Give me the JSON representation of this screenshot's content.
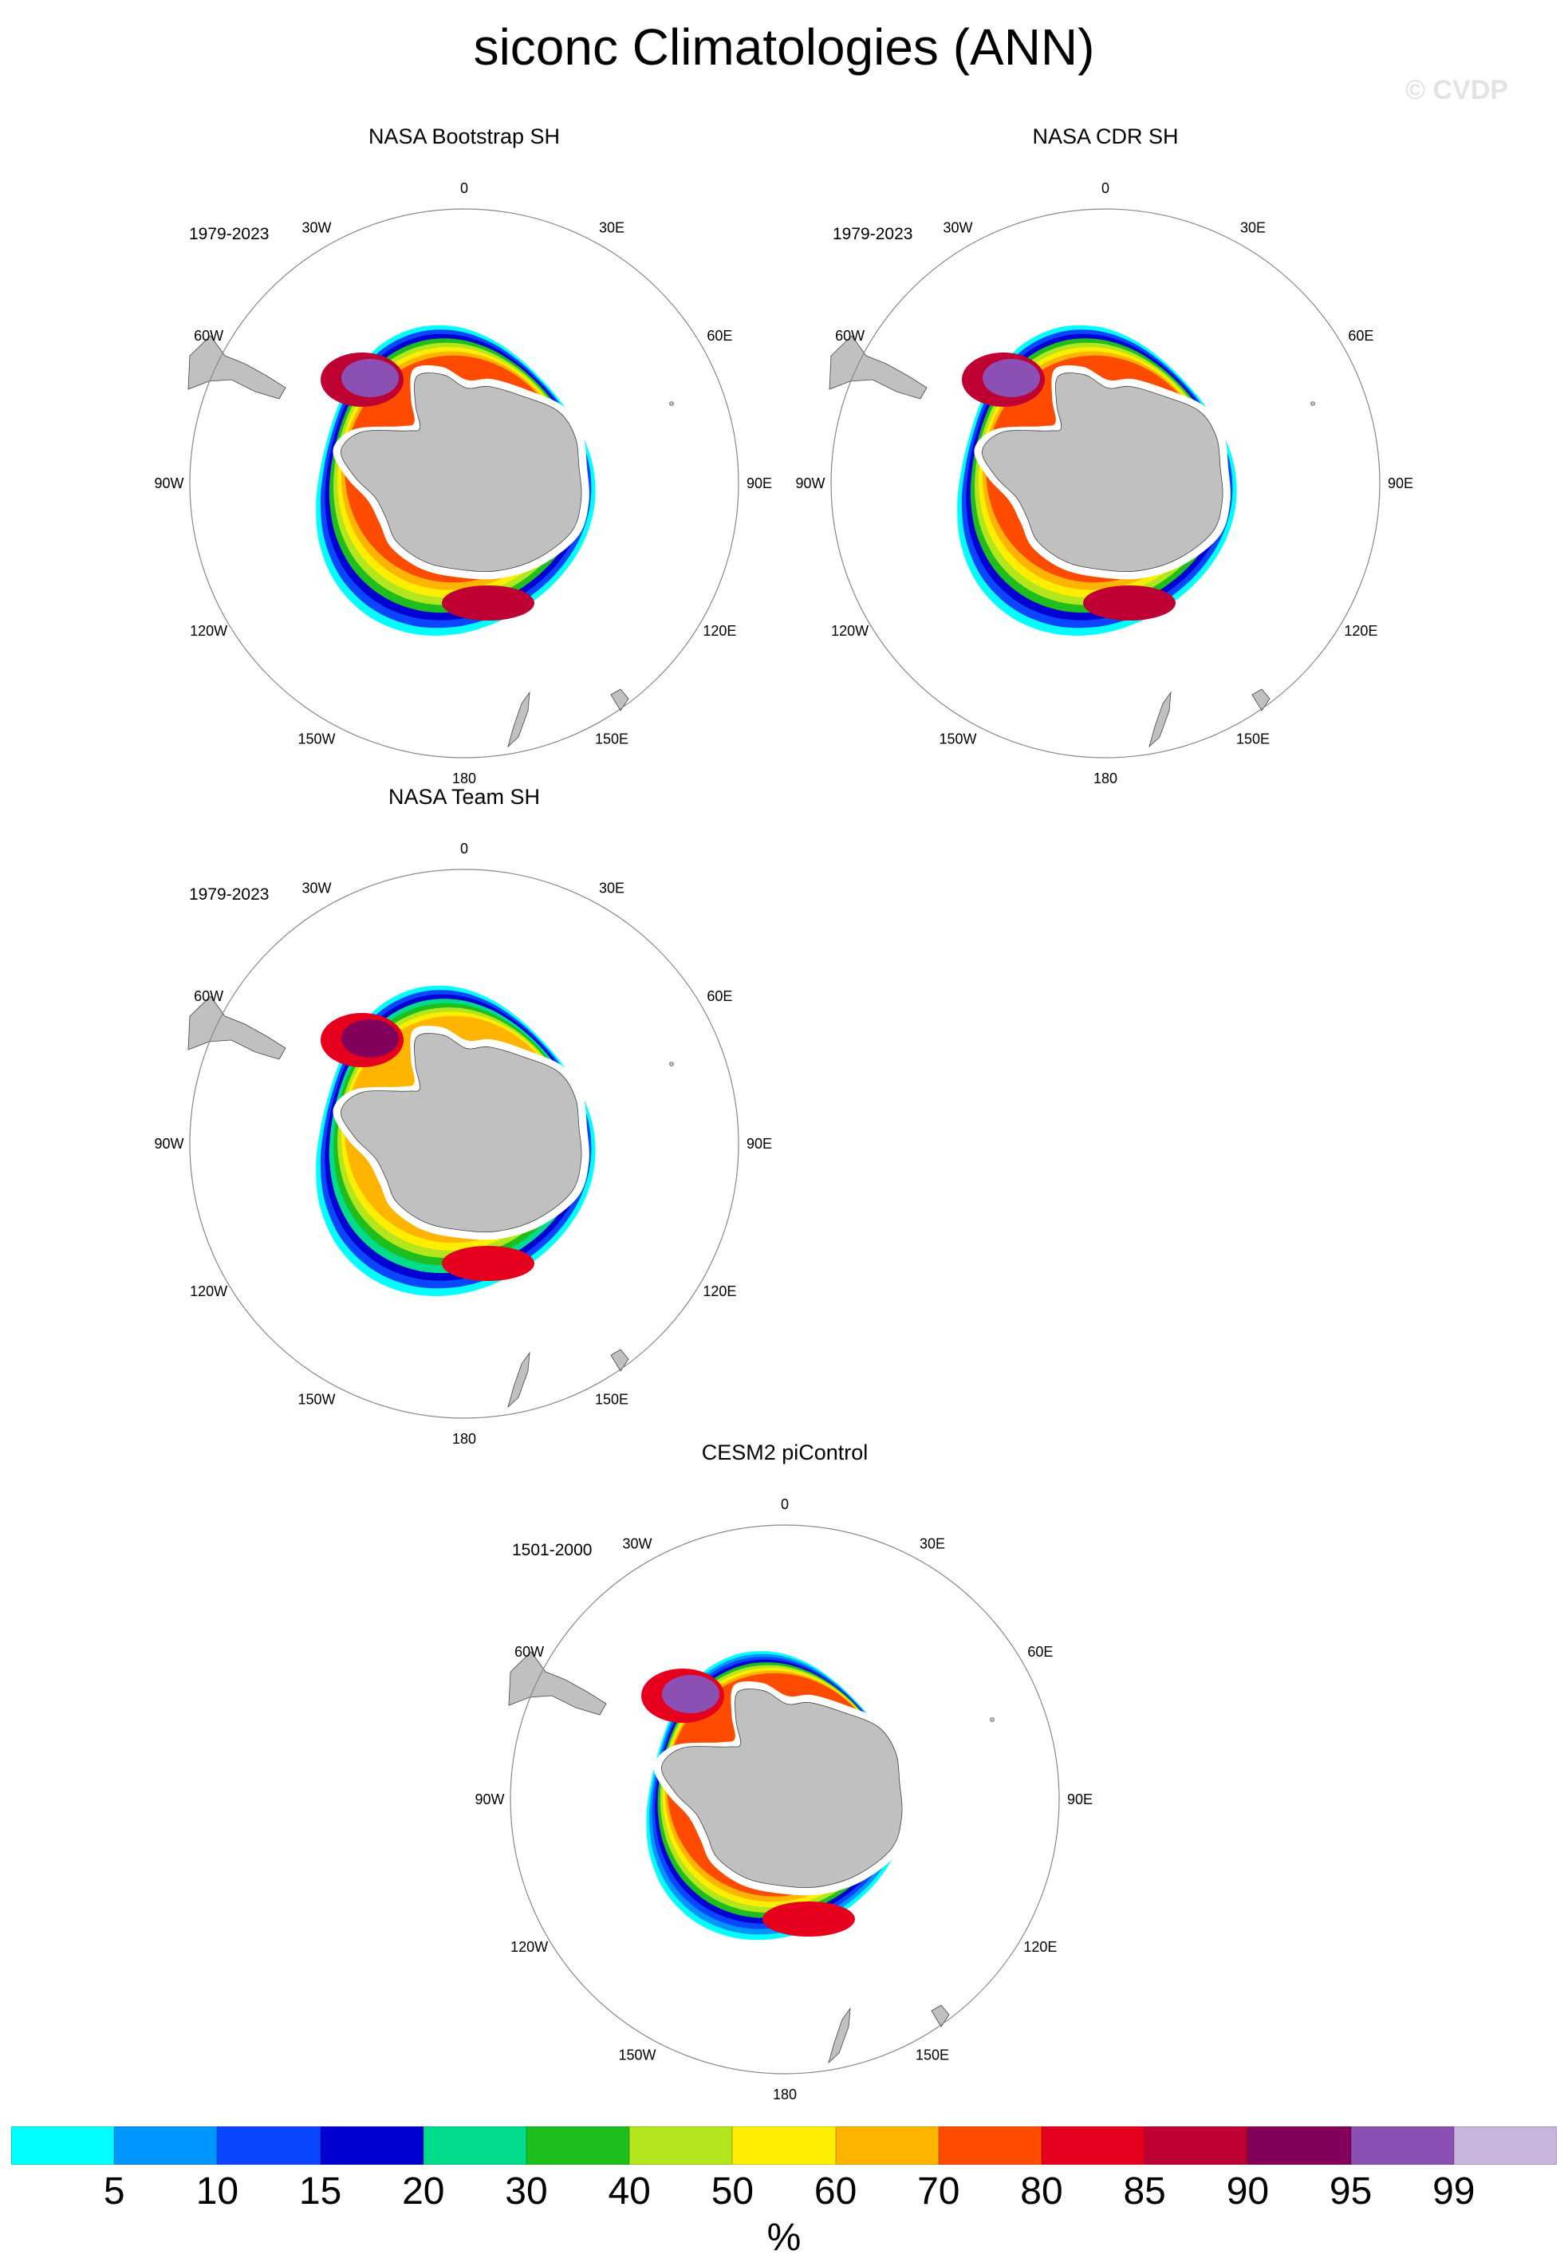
{
  "title": "siconc Climatologies (ANN)",
  "watermark": "© CVDP",
  "longitude_labels": [
    "0",
    "30E",
    "60E",
    "90E",
    "120E",
    "150E",
    "180",
    "150W",
    "120W",
    "90W",
    "60W",
    "30W"
  ],
  "colorbar": {
    "unit": "%",
    "levels": [
      5,
      10,
      15,
      20,
      30,
      40,
      50,
      60,
      70,
      80,
      85,
      90,
      95,
      99
    ],
    "level_labels": [
      "5",
      "10",
      "15",
      "20",
      "30",
      "40",
      "50",
      "60",
      "70",
      "80",
      "85",
      "90",
      "95",
      "99"
    ],
    "colors": [
      "#00ffff",
      "#0096ff",
      "#0a46ff",
      "#0000d2",
      "#00dc8c",
      "#1ebe1e",
      "#b4e61e",
      "#ffee00",
      "#ffb400",
      "#ff4b00",
      "#e6001e",
      "#be0032",
      "#82005a",
      "#8c50b4",
      "#c8b4dc"
    ]
  },
  "land_color": "#c0c0c0",
  "chart_data": [
    {
      "type": "heatmap",
      "projection": "south-polar-stereographic",
      "title": "NASA Bootstrap SH",
      "years": "1979-2023",
      "ice_edge_deg": 30,
      "color_bands": [
        "#00ffff",
        "#0a46ff",
        "#0000d2",
        "#1ebe1e",
        "#b4e61e",
        "#ffee00",
        "#ffb400",
        "#ff4b00"
      ],
      "weddell_max": "#8c50b4",
      "ross_max": "#be0032"
    },
    {
      "type": "heatmap",
      "projection": "south-polar-stereographic",
      "title": "NASA CDR SH",
      "years": "1979-2023",
      "ice_edge_deg": 30,
      "color_bands": [
        "#00ffff",
        "#0a46ff",
        "#0000d2",
        "#1ebe1e",
        "#b4e61e",
        "#ffee00",
        "#ffb400",
        "#ff4b00"
      ],
      "weddell_max": "#8c50b4",
      "ross_max": "#be0032"
    },
    {
      "type": "heatmap",
      "projection": "south-polar-stereographic",
      "title": "NASA Team SH",
      "years": "1979-2023",
      "ice_edge_deg": 30,
      "color_bands": [
        "#00ffff",
        "#0a46ff",
        "#0000d2",
        "#00dc8c",
        "#1ebe1e",
        "#b4e61e",
        "#ffee00",
        "#ffb400"
      ],
      "weddell_max": "#82005a",
      "ross_max": "#e6001e"
    },
    {
      "type": "heatmap",
      "projection": "south-polar-stereographic",
      "title": "CESM2 piControl",
      "years": "1501-2000",
      "ice_edge_deg": 28,
      "color_bands": [
        "#00ffff",
        "#0096ff",
        "#0a46ff",
        "#0000d2",
        "#1ebe1e",
        "#b4e61e",
        "#ffee00",
        "#ffb400",
        "#ff4b00"
      ],
      "weddell_max": "#8c50b4",
      "ross_max": "#e6001e"
    }
  ]
}
